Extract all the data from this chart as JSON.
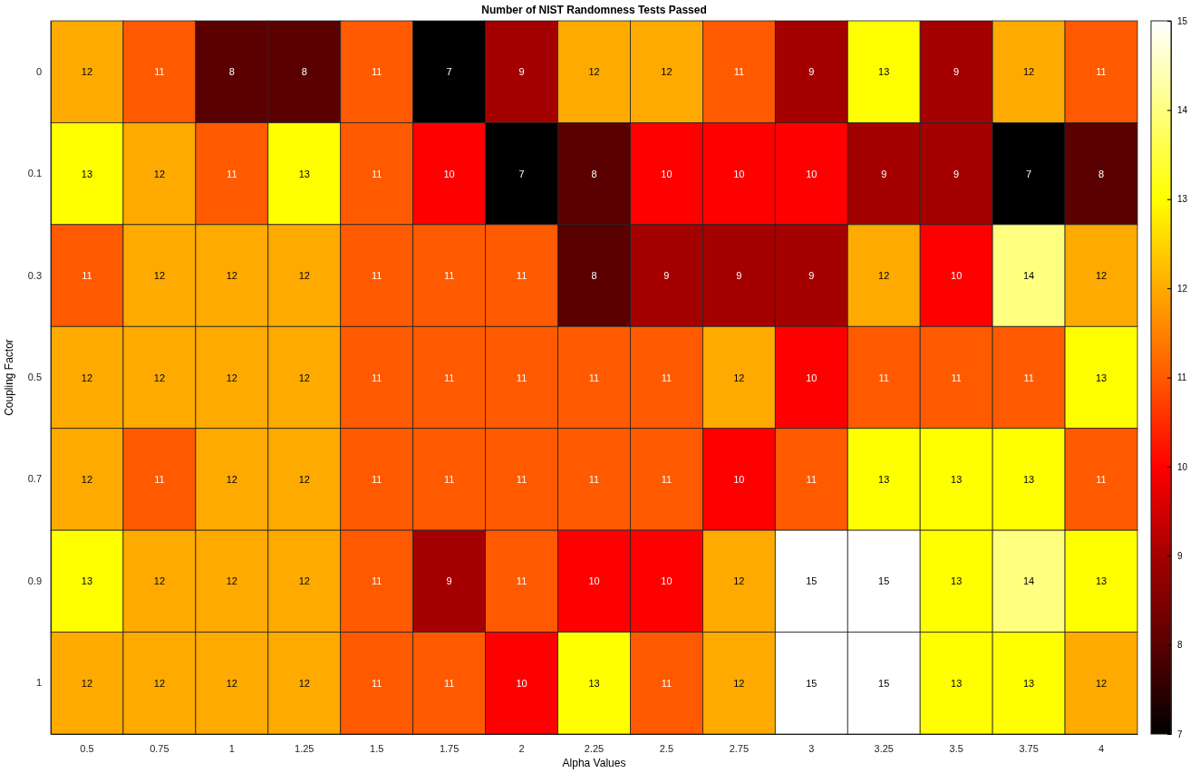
{
  "chart_data": {
    "type": "heatmap",
    "title": "Number of NIST Randomness Tests Passed",
    "xlabel": "Alpha Values",
    "ylabel": "Coupling Factor",
    "categories": [
      "0.5",
      "0.75",
      "1",
      "1.25",
      "1.5",
      "1.75",
      "2",
      "2.25",
      "2.5",
      "2.75",
      "3",
      "3.25",
      "3.5",
      "3.75",
      "4"
    ],
    "y_categories": [
      "0",
      "0.1",
      "0.3",
      "0.5",
      "0.7",
      "0.9",
      "1"
    ],
    "cells": [
      [
        12,
        11,
        8,
        8,
        11,
        7,
        9,
        12,
        12,
        11,
        9,
        13,
        9,
        12,
        11
      ],
      [
        13,
        12,
        11,
        13,
        11,
        10,
        7,
        8,
        10,
        10,
        10,
        9,
        9,
        7,
        8
      ],
      [
        11,
        12,
        12,
        12,
        11,
        11,
        11,
        8,
        9,
        9,
        9,
        12,
        10,
        14,
        12
      ],
      [
        12,
        12,
        12,
        12,
        11,
        11,
        11,
        11,
        11,
        12,
        10,
        11,
        11,
        11,
        13
      ],
      [
        12,
        11,
        12,
        12,
        11,
        11,
        11,
        11,
        11,
        10,
        11,
        13,
        13,
        13,
        11
      ],
      [
        13,
        12,
        12,
        12,
        11,
        9,
        11,
        10,
        10,
        12,
        15,
        15,
        13,
        14,
        13
      ],
      [
        12,
        12,
        12,
        12,
        11,
        11,
        10,
        13,
        11,
        12,
        15,
        15,
        13,
        13,
        12
      ]
    ],
    "clim": [
      7,
      15
    ],
    "cticks": [
      7,
      8,
      9,
      10,
      11,
      12,
      13,
      14,
      15
    ],
    "data_labels": true
  }
}
